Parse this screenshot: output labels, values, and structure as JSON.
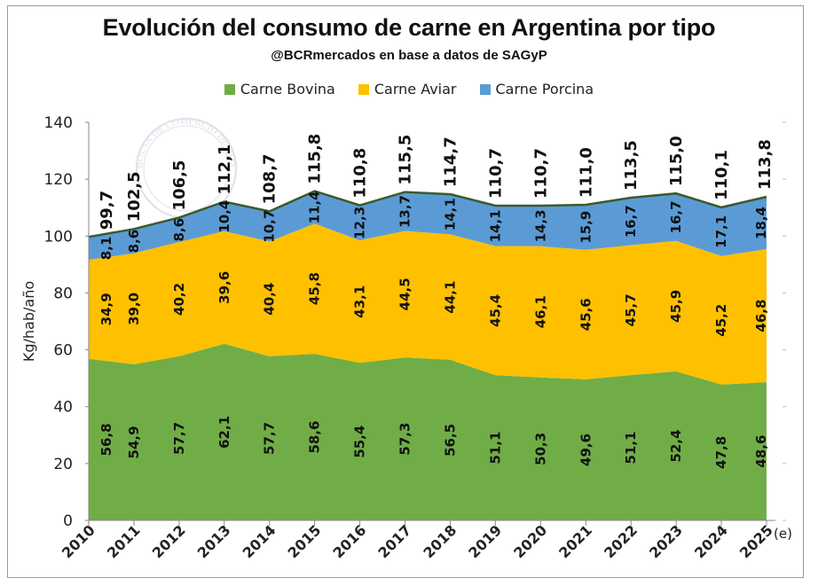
{
  "chart_data": {
    "type": "area",
    "stacked": true,
    "title": "Evolución del consumo de carne en Argentina por tipo",
    "subtitle": "@BCRmercados en base a datos de SAGyP",
    "ylabel": "Kg/hab/año",
    "xlabel": "",
    "ylim": [
      0,
      140
    ],
    "yticks": [
      0,
      20,
      40,
      60,
      80,
      100,
      120,
      140
    ],
    "grid": false,
    "legend_position": "top-center",
    "categories": [
      "2010",
      "2011",
      "2012",
      "2013",
      "2014",
      "2015",
      "2016",
      "2017",
      "2018",
      "2019",
      "2020",
      "2021",
      "2022",
      "2023",
      "2024",
      "2025"
    ],
    "estimate_note": "(e)",
    "series": [
      {
        "name": "Carne Bovina",
        "color": "#70ad47",
        "values": [
          56.8,
          54.9,
          57.7,
          62.1,
          57.7,
          58.6,
          55.4,
          57.3,
          56.5,
          51.1,
          50.3,
          49.6,
          51.1,
          52.4,
          47.8,
          48.6
        ],
        "labels": [
          "56,8",
          "54,9",
          "57,7",
          "62,1",
          "57,7",
          "58,6",
          "55,4",
          "57,3",
          "56,5",
          "51,1",
          "50,3",
          "49,6",
          "51,1",
          "52,4",
          "47,8",
          "48,6"
        ]
      },
      {
        "name": "Carne Aviar",
        "color": "#ffc000",
        "values": [
          34.9,
          39.0,
          40.2,
          39.6,
          40.4,
          45.8,
          43.1,
          44.5,
          44.1,
          45.4,
          46.1,
          45.6,
          45.7,
          45.9,
          45.2,
          46.8
        ],
        "labels": [
          "34,9",
          "39,0",
          "40,2",
          "39,6",
          "40,4",
          "45,8",
          "43,1",
          "44,5",
          "44,1",
          "45,4",
          "46,1",
          "45,6",
          "45,7",
          "45,9",
          "45,2",
          "46,8"
        ]
      },
      {
        "name": "Carne Porcina",
        "color": "#5b9bd5",
        "values": [
          8.1,
          8.6,
          8.6,
          10.4,
          10.7,
          11.4,
          12.3,
          13.7,
          14.1,
          14.1,
          14.3,
          15.9,
          16.7,
          16.7,
          17.1,
          18.4
        ],
        "labels": [
          "8,1",
          "8,6",
          "8,6",
          "10,4",
          "10,7",
          "11,4",
          "12,3",
          "13,7",
          "14,1",
          "14,1",
          "14,3",
          "15,9",
          "16,7",
          "16,7",
          "17,1",
          "18,4"
        ]
      }
    ],
    "totals": [
      99.7,
      102.5,
      106.5,
      112.1,
      108.7,
      115.8,
      110.8,
      115.5,
      114.7,
      110.7,
      110.7,
      111.0,
      113.5,
      115.0,
      110.1,
      113.8
    ],
    "total_labels": [
      "99,7",
      "102,5",
      "106,5",
      "112,1",
      "108,7",
      "115,8",
      "110,8",
      "115,5",
      "114,7",
      "110,7",
      "110,7",
      "111,0",
      "113,5",
      "115,0",
      "110,1",
      "113,8"
    ],
    "total_line_color": "#3b5a2c",
    "watermark": "BOLSA DE COMERCIO DE ROSARIO"
  }
}
